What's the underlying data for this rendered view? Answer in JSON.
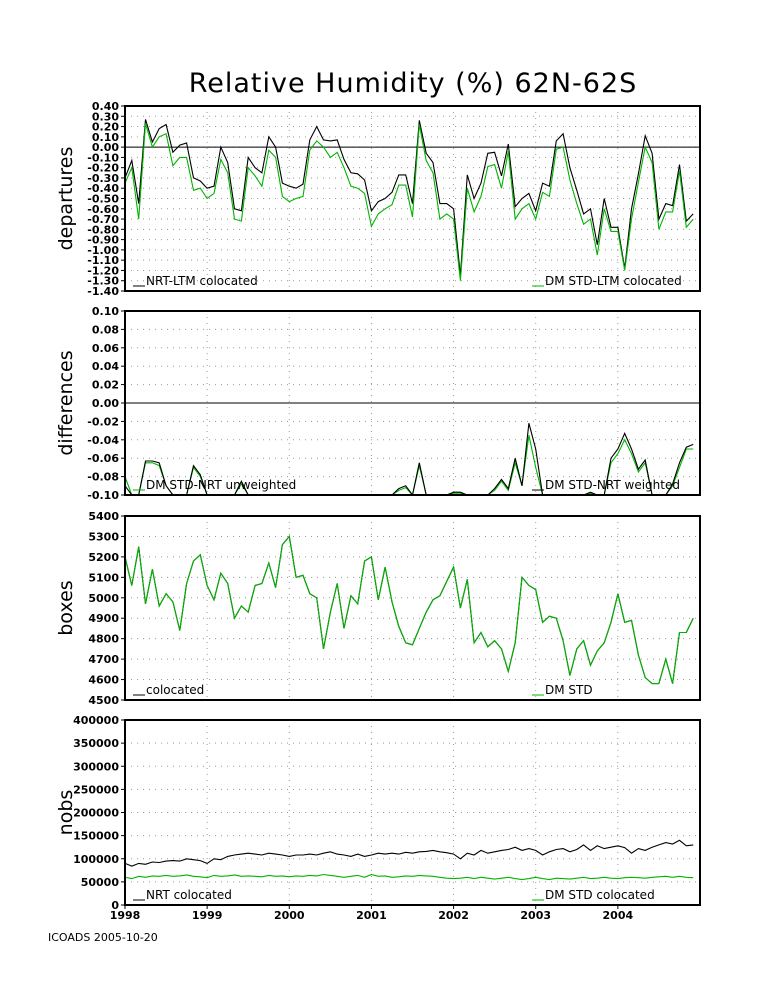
{
  "title": "Relative Humidity (%) 62N-62S",
  "footer": "ICOADS 2005-10-20",
  "colors": {
    "black": "#000000",
    "green": "#00b400",
    "grid": "#9a9a9a"
  },
  "chart_data": [
    {
      "type": "line",
      "ylabel": "departures",
      "ylim": [
        -1.4,
        0.4
      ],
      "yticks": [
        0.4,
        0.3,
        0.2,
        0.1,
        0.0,
        -0.1,
        -0.2,
        -0.3,
        -0.4,
        -0.5,
        -0.6,
        -0.7,
        -0.8,
        -0.9,
        -1.0,
        -1.1,
        -1.2,
        -1.3,
        -1.4
      ],
      "ytick_labels": [
        "0.40",
        "0.30",
        "0.20",
        "0.10",
        "0.00",
        "-0.10",
        "-0.20",
        "-0.30",
        "-0.40",
        "-0.50",
        "-0.60",
        "-0.70",
        "-0.80",
        "-0.90",
        "-1.00",
        "-1.10",
        "-1.20",
        "-1.30",
        "-1.40"
      ],
      "zero_line": 0.0,
      "series": [
        {
          "name": "NRT-LTM colocated",
          "color": "black",
          "values": [
            -0.3,
            -0.13,
            -0.55,
            0.27,
            0.05,
            0.18,
            0.22,
            -0.05,
            0.02,
            0.04,
            -0.3,
            -0.33,
            -0.4,
            -0.38,
            0.0,
            -0.15,
            -0.6,
            -0.62,
            -0.1,
            -0.2,
            -0.25,
            0.1,
            0.0,
            -0.35,
            -0.38,
            -0.4,
            -0.36,
            0.07,
            0.2,
            0.07,
            0.06,
            0.07,
            -0.12,
            -0.25,
            -0.26,
            -0.32,
            -0.62,
            -0.53,
            -0.5,
            -0.44,
            -0.27,
            -0.27,
            -0.55,
            0.26,
            -0.06,
            -0.15,
            -0.55,
            -0.55,
            -0.6,
            -1.25,
            -0.27,
            -0.5,
            -0.35,
            -0.06,
            -0.05,
            -0.28,
            0.03,
            -0.58,
            -0.5,
            -0.45,
            -0.62,
            -0.35,
            -0.38,
            0.06,
            0.13,
            -0.2,
            -0.42,
            -0.65,
            -0.6,
            -0.95,
            -0.5,
            -0.78,
            -0.78,
            -1.18,
            -0.6,
            -0.26,
            0.11,
            -0.06,
            -0.7,
            -0.55,
            -0.57,
            -0.17,
            -0.72,
            -0.65
          ]
        },
        {
          "name": "DM STD-LTM colocated",
          "color": "green",
          "values": [
            -0.35,
            -0.2,
            -0.7,
            0.23,
            0.0,
            0.1,
            0.13,
            -0.18,
            -0.1,
            -0.1,
            -0.42,
            -0.4,
            -0.5,
            -0.45,
            -0.12,
            -0.25,
            -0.7,
            -0.72,
            -0.2,
            -0.28,
            -0.38,
            -0.03,
            -0.1,
            -0.48,
            -0.53,
            -0.5,
            -0.48,
            -0.03,
            0.06,
            0.0,
            -0.1,
            -0.05,
            -0.2,
            -0.38,
            -0.4,
            -0.45,
            -0.77,
            -0.65,
            -0.6,
            -0.56,
            -0.37,
            -0.37,
            -0.68,
            0.22,
            -0.13,
            -0.25,
            -0.7,
            -0.65,
            -0.7,
            -1.3,
            -0.4,
            -0.63,
            -0.48,
            -0.19,
            -0.17,
            -0.4,
            -0.04,
            -0.7,
            -0.6,
            -0.55,
            -0.7,
            -0.44,
            -0.48,
            -0.02,
            0.0,
            -0.32,
            -0.55,
            -0.75,
            -0.7,
            -1.05,
            -0.6,
            -0.82,
            -0.82,
            -1.2,
            -0.7,
            -0.34,
            0.0,
            -0.15,
            -0.8,
            -0.63,
            -0.63,
            -0.23,
            -0.78,
            -0.7
          ]
        }
      ]
    },
    {
      "type": "line",
      "ylabel": "differences",
      "ylim": [
        -0.1,
        0.1
      ],
      "yticks": [
        0.1,
        0.08,
        0.06,
        0.04,
        0.02,
        0.0,
        -0.02,
        -0.04,
        -0.06,
        -0.08,
        -0.1
      ],
      "ytick_labels": [
        "0.10",
        "0.08",
        "0.06",
        "0.04",
        "0.02",
        "0.00",
        "-0.02",
        "-0.04",
        "-0.06",
        "-0.08",
        "-0.10"
      ],
      "zero_line": 0.0,
      "series": [
        {
          "name": "DM STD-NRT unweighted",
          "color": "green",
          "values": [
            -0.08,
            -0.1,
            -0.1,
            -0.065,
            -0.065,
            -0.068,
            -0.09,
            -0.1,
            -0.1,
            -0.1,
            -0.07,
            -0.08,
            -0.1,
            -0.1,
            -0.1,
            -0.1,
            -0.1,
            -0.088,
            -0.1,
            -0.1,
            -0.1,
            -0.1,
            -0.1,
            -0.1,
            -0.1,
            -0.1,
            -0.1,
            -0.1,
            -0.1,
            -0.1,
            -0.1,
            -0.1,
            -0.1,
            -0.1,
            -0.1,
            -0.1,
            -0.1,
            -0.1,
            -0.1,
            -0.1,
            -0.095,
            -0.092,
            -0.1,
            -0.068,
            -0.1,
            -0.1,
            -0.1,
            -0.1,
            -0.098,
            -0.098,
            -0.1,
            -0.1,
            -0.1,
            -0.1,
            -0.095,
            -0.085,
            -0.095,
            -0.065,
            -0.09,
            -0.035,
            -0.07,
            -0.1,
            -0.1,
            -0.1,
            -0.1,
            -0.1,
            -0.1,
            -0.1,
            -0.098,
            -0.1,
            -0.1,
            -0.065,
            -0.055,
            -0.04,
            -0.055,
            -0.075,
            -0.065,
            -0.1,
            -0.1,
            -0.1,
            -0.09,
            -0.07,
            -0.05,
            -0.05
          ]
        },
        {
          "name": "DM STD-NRT weighted",
          "color": "black",
          "values": [
            -0.09,
            -0.1,
            -0.1,
            -0.063,
            -0.063,
            -0.065,
            -0.09,
            -0.1,
            -0.1,
            -0.1,
            -0.068,
            -0.078,
            -0.1,
            -0.1,
            -0.1,
            -0.1,
            -0.1,
            -0.085,
            -0.1,
            -0.1,
            -0.1,
            -0.1,
            -0.1,
            -0.1,
            -0.1,
            -0.1,
            -0.1,
            -0.1,
            -0.1,
            -0.1,
            -0.1,
            -0.1,
            -0.1,
            -0.1,
            -0.1,
            -0.1,
            -0.1,
            -0.1,
            -0.1,
            -0.1,
            -0.093,
            -0.09,
            -0.1,
            -0.065,
            -0.1,
            -0.1,
            -0.1,
            -0.1,
            -0.097,
            -0.097,
            -0.1,
            -0.1,
            -0.1,
            -0.1,
            -0.093,
            -0.083,
            -0.093,
            -0.06,
            -0.09,
            -0.022,
            -0.05,
            -0.1,
            -0.1,
            -0.1,
            -0.1,
            -0.1,
            -0.1,
            -0.1,
            -0.097,
            -0.1,
            -0.1,
            -0.06,
            -0.05,
            -0.033,
            -0.05,
            -0.072,
            -0.062,
            -0.1,
            -0.1,
            -0.1,
            -0.088,
            -0.065,
            -0.048,
            -0.045
          ]
        }
      ]
    },
    {
      "type": "line",
      "ylabel": "boxes",
      "ylim": [
        4500,
        5400
      ],
      "yticks": [
        5400,
        5300,
        5200,
        5100,
        5000,
        4900,
        4800,
        4700,
        4600,
        4500
      ],
      "ytick_labels": [
        "5400",
        "5300",
        "5200",
        "5100",
        "5000",
        "4900",
        "4800",
        "4700",
        "4600",
        "4500"
      ],
      "series": [
        {
          "name": "colocated",
          "color": "black",
          "values": [
            5200,
            5060,
            5250,
            4970,
            5140,
            4960,
            5020,
            4980,
            4840,
            5070,
            5180,
            5210,
            5060,
            4990,
            5120,
            5070,
            4900,
            4960,
            4930,
            5060,
            5070,
            5170,
            5050,
            5260,
            5300,
            5100,
            5110,
            5020,
            5000,
            4750,
            4930,
            5070,
            4850,
            5010,
            4970,
            5180,
            5200,
            4990,
            5150,
            4980,
            4860,
            4780,
            4770,
            4850,
            4930,
            4990,
            5010,
            5080,
            5150,
            4950,
            5090,
            4780,
            4830,
            4760,
            4790,
            4750,
            4640,
            4780,
            5100,
            5060,
            5040,
            4880,
            4910,
            4900,
            4790,
            4620,
            4750,
            4790,
            4670,
            4740,
            4780,
            4880,
            5020,
            4880,
            4890,
            4720,
            4610,
            4580,
            4580,
            4700,
            4580,
            4830,
            4830,
            4900
          ]
        },
        {
          "name": "DM STD",
          "color": "green",
          "values": [
            5200,
            5060,
            5250,
            4970,
            5140,
            4960,
            5020,
            4980,
            4840,
            5070,
            5180,
            5210,
            5060,
            4990,
            5120,
            5070,
            4900,
            4960,
            4930,
            5060,
            5070,
            5170,
            5050,
            5260,
            5300,
            5100,
            5110,
            5020,
            5000,
            4750,
            4930,
            5070,
            4850,
            5010,
            4970,
            5180,
            5200,
            4990,
            5150,
            4980,
            4860,
            4780,
            4770,
            4850,
            4930,
            4990,
            5010,
            5080,
            5150,
            4950,
            5090,
            4780,
            4830,
            4760,
            4790,
            4750,
            4640,
            4780,
            5100,
            5060,
            5040,
            4880,
            4910,
            4900,
            4790,
            4620,
            4750,
            4790,
            4670,
            4740,
            4780,
            4880,
            5020,
            4880,
            4890,
            4720,
            4610,
            4580,
            4580,
            4700,
            4580,
            4830,
            4830,
            4900
          ]
        }
      ]
    },
    {
      "type": "line",
      "ylabel": "nobs",
      "ylim": [
        0,
        400000
      ],
      "yticks": [
        400000,
        350000,
        300000,
        250000,
        200000,
        150000,
        100000,
        50000,
        0
      ],
      "ytick_labels": [
        "400000",
        "350000",
        "300000",
        "250000",
        "200000",
        "150000",
        "100000",
        "50000",
        "0"
      ],
      "xticks": [
        0,
        12,
        24,
        36,
        48,
        60,
        72
      ],
      "xtick_labels": [
        "1998",
        "1999",
        "2000",
        "2001",
        "2002",
        "2003",
        "2004"
      ],
      "series": [
        {
          "name": "NRT colocated",
          "color": "black",
          "values": [
            90000,
            84000,
            90000,
            88000,
            93000,
            92000,
            95000,
            96000,
            95000,
            100000,
            98000,
            96000,
            90000,
            100000,
            98000,
            105000,
            108000,
            110000,
            112000,
            110000,
            108000,
            112000,
            110000,
            108000,
            105000,
            108000,
            108000,
            110000,
            108000,
            112000,
            115000,
            110000,
            108000,
            105000,
            110000,
            105000,
            108000,
            112000,
            110000,
            112000,
            110000,
            114000,
            112000,
            115000,
            116000,
            118000,
            115000,
            113000,
            110000,
            100000,
            112000,
            108000,
            118000,
            112000,
            115000,
            118000,
            120000,
            125000,
            118000,
            122000,
            118000,
            108000,
            115000,
            120000,
            122000,
            115000,
            120000,
            130000,
            118000,
            128000,
            122000,
            125000,
            128000,
            124000,
            112000,
            122000,
            118000,
            125000,
            130000,
            135000,
            132000,
            140000,
            128000,
            130000
          ]
        },
        {
          "name": "DM STD colocated",
          "color": "green",
          "values": [
            60000,
            57000,
            62000,
            60000,
            63000,
            62000,
            64000,
            62000,
            63000,
            65000,
            62000,
            61000,
            59000,
            64000,
            62000,
            63000,
            65000,
            62000,
            63000,
            62000,
            61000,
            64000,
            62000,
            63000,
            61000,
            63000,
            62000,
            64000,
            63000,
            66000,
            64000,
            62000,
            60000,
            62000,
            64000,
            60000,
            66000,
            62000,
            63000,
            60000,
            61000,
            63000,
            62000,
            64000,
            63000,
            62000,
            60000,
            58000,
            57000,
            58000,
            60000,
            57000,
            60000,
            58000,
            56000,
            58000,
            60000,
            57000,
            55000,
            57000,
            60000,
            57000,
            55000,
            58000,
            57000,
            56000,
            58000,
            60000,
            57000,
            58000,
            60000,
            58000,
            57000,
            59000,
            60000,
            59000,
            58000,
            60000,
            61000,
            62000,
            60000,
            62000,
            60000,
            59000
          ]
        }
      ]
    }
  ]
}
